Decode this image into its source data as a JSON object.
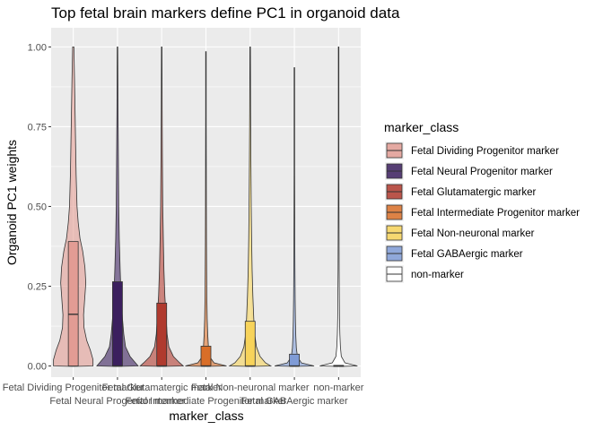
{
  "chart_data": {
    "type": "violin",
    "title": "Top fetal brain markers define PC1 in organoid data",
    "xlabel": "marker_class",
    "ylabel": "Organoid PC1 weights",
    "ylim": [
      -0.035,
      1.06
    ],
    "y_ticks": [
      "0.00",
      "0.25",
      "0.50",
      "0.75",
      "1.00"
    ],
    "y_tick_values": [
      0,
      0.25,
      0.5,
      0.75,
      1.0
    ],
    "grid": true,
    "legend_title": "marker_class",
    "legend_position": "right",
    "categories": [
      "Fetal Dividing Progenitor marker",
      "Fetal Neural Progenitor marker",
      "Fetal Glutamatergic marker",
      "Fetal Intermediate Progenitor marker",
      "Fetal Non-neuronal marker",
      "Fetal GABAergic marker",
      "non-marker"
    ],
    "x_tick_labels": [
      "Fetal Dividing Progenitor marker",
      "Fetal Neural Progenitor marker",
      "Fetal Glutamatergic marker",
      "Fetal Intermediate Progenitor marker",
      "Fetal Non-neuronal marker",
      "Fetal GABAergic marker",
      "non-marker"
    ],
    "colors": [
      "#e29c94",
      "#3b1f5e",
      "#b03a2e",
      "#d96e28",
      "#f7d35a",
      "#7f9bd6",
      "#ffffff"
    ],
    "series": [
      {
        "name": "Fetal Dividing Progenitor marker",
        "q1": 0.0,
        "median": 0.162,
        "q3": 0.39,
        "max": 1.0
      },
      {
        "name": "Fetal Neural Progenitor marker",
        "q1": 0.0,
        "median": 0.0,
        "q3": 0.264,
        "max": 1.0
      },
      {
        "name": "Fetal Glutamatergic marker",
        "q1": 0.0,
        "median": 0.0,
        "q3": 0.197,
        "max": 1.0
      },
      {
        "name": "Fetal Intermediate Progenitor marker",
        "q1": 0.0,
        "median": 0.0,
        "q3": 0.062,
        "max": 0.985
      },
      {
        "name": "Fetal Non-neuronal marker",
        "q1": 0.0,
        "median": 0.0,
        "q3": 0.14,
        "max": 1.0
      },
      {
        "name": "Fetal GABAergic marker",
        "q1": 0.0,
        "median": 0.0,
        "q3": 0.037,
        "max": 0.935
      },
      {
        "name": "non-marker",
        "q1": 0.0,
        "median": 0.0,
        "q3": 0.002,
        "max": 1.0
      }
    ]
  }
}
